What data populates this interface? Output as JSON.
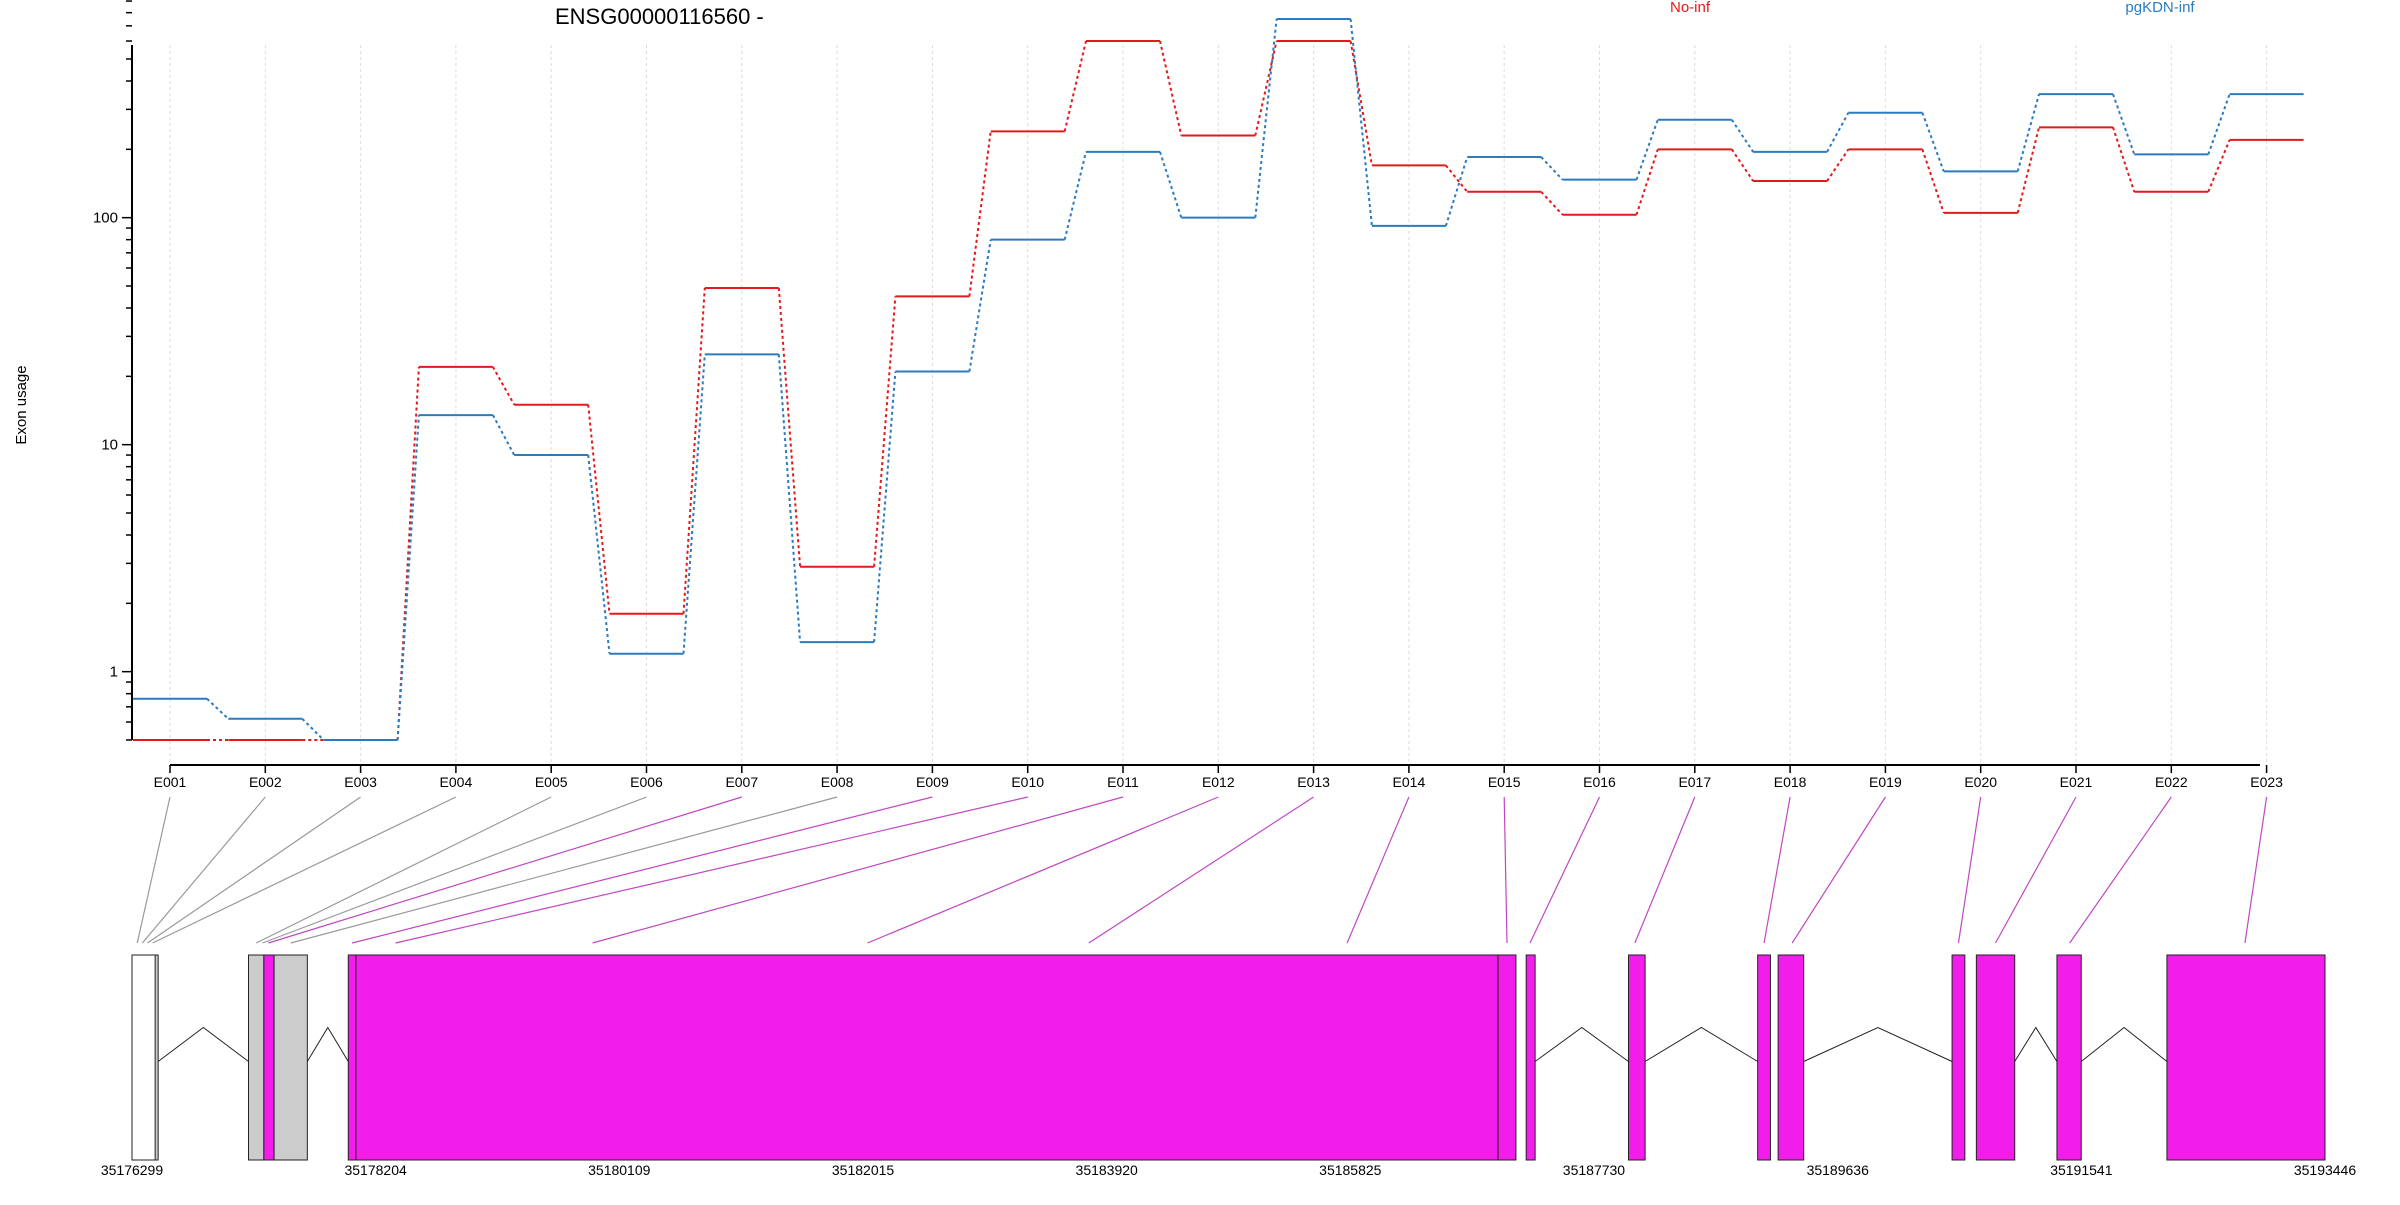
{
  "title": "ENSG00000116560 -",
  "legend": [
    {
      "name": "No-inf",
      "color": "#e31a1c"
    },
    {
      "name": "pgKDN-inf",
      "color": "#2b7bbf"
    }
  ],
  "ylabel": "Exon usage",
  "colors": {
    "no_inf": "#e31a1c",
    "pgkdn_inf": "#2b7bbf",
    "exon_used": "#f21deb",
    "exon_other": "#cccccc",
    "connector_used": "#c048c0",
    "connector_other": "#999999",
    "grid": "#dddddd"
  },
  "chart_data": {
    "type": "line",
    "title": "ENSG00000116560 -",
    "ylabel": "Exon usage",
    "yscale": "log",
    "ylim": [
      0.5,
      900
    ],
    "yticks": [
      1,
      10,
      100
    ],
    "ytick_labels": [
      "1",
      "10",
      "100"
    ],
    "grid": "vertical dotted",
    "legend_position": "top",
    "categories": [
      "E001",
      "E002",
      "E003",
      "E004",
      "E005",
      "E006",
      "E007",
      "E008",
      "E009",
      "E010",
      "E011",
      "E012",
      "E013",
      "E014",
      "E015",
      "E016",
      "E017",
      "E018",
      "E019",
      "E020",
      "E021",
      "E022",
      "E023"
    ],
    "series": [
      {
        "name": "No-inf",
        "color": "#e31a1c",
        "values": [
          0.5,
          0.5,
          0.5,
          22,
          15,
          1.8,
          49,
          2.9,
          45,
          240,
          600,
          230,
          600,
          170,
          130,
          103,
          200,
          145,
          200,
          105,
          250,
          130,
          220
        ]
      },
      {
        "name": "pgKDN-inf",
        "color": "#2b7bbf",
        "values": [
          0.76,
          0.62,
          0.5,
          13.5,
          9,
          1.2,
          25,
          1.35,
          21,
          80,
          195,
          100,
          750,
          92,
          185,
          147,
          270,
          195,
          290,
          160,
          350,
          190,
          350
        ]
      }
    ]
  },
  "gene_model": {
    "coord_labels": [
      "35176299",
      "35178204",
      "35180109",
      "35182015",
      "35183920",
      "35185825",
      "35187730",
      "35189636",
      "35191541",
      "35193446"
    ],
    "coord_ticks": [
      35176299,
      35178204,
      35180109,
      35182015,
      35183920,
      35185825,
      35187730,
      35189636,
      35191541,
      35193446
    ],
    "range": [
      35176299,
      35193446
    ],
    "exons": [
      {
        "start": 35176299,
        "end": 35176490,
        "kind": "blank"
      },
      {
        "start": 35176490,
        "end": 35176480,
        "kind": "other"
      },
      {
        "start": 35177210,
        "end": 35177330,
        "kind": "other"
      },
      {
        "start": 35177330,
        "end": 35177410,
        "kind": "used"
      },
      {
        "start": 35177410,
        "end": 35177670,
        "kind": "other"
      },
      {
        "start": 35177990,
        "end": 35178050,
        "kind": "used"
      },
      {
        "start": 35178050,
        "end": 35186980,
        "kind": "used"
      },
      {
        "start": 35186980,
        "end": 35187120,
        "kind": "used"
      },
      {
        "start": 35187200,
        "end": 35187270,
        "kind": "used"
      },
      {
        "start": 35188000,
        "end": 35188130,
        "kind": "used"
      },
      {
        "start": 35189010,
        "end": 35189110,
        "kind": "used"
      },
      {
        "start": 35189170,
        "end": 35189370,
        "kind": "used"
      },
      {
        "start": 35190530,
        "end": 35190630,
        "kind": "used"
      },
      {
        "start": 35190720,
        "end": 35191020,
        "kind": "used"
      },
      {
        "start": 35191350,
        "end": 35191540,
        "kind": "used"
      },
      {
        "start": 35192210,
        "end": 35193446,
        "kind": "used"
      }
    ],
    "exon_links": [
      {
        "exon": "E001",
        "pos": 35176340,
        "kind": "other"
      },
      {
        "exon": "E002",
        "pos": 35176380,
        "kind": "other"
      },
      {
        "exon": "E003",
        "pos": 35176420,
        "kind": "other"
      },
      {
        "exon": "E004",
        "pos": 35176460,
        "kind": "other"
      },
      {
        "exon": "E005",
        "pos": 35177270,
        "kind": "other"
      },
      {
        "exon": "E006",
        "pos": 35177320,
        "kind": "other"
      },
      {
        "exon": "E007",
        "pos": 35177365,
        "kind": "used"
      },
      {
        "exon": "E008",
        "pos": 35177540,
        "kind": "other"
      },
      {
        "exon": "E009",
        "pos": 35178020,
        "kind": "used"
      },
      {
        "exon": "E010",
        "pos": 35178360,
        "kind": "used"
      },
      {
        "exon": "E011",
        "pos": 35179900,
        "kind": "used"
      },
      {
        "exon": "E012",
        "pos": 35182050,
        "kind": "used"
      },
      {
        "exon": "E013",
        "pos": 35183780,
        "kind": "used"
      },
      {
        "exon": "E014",
        "pos": 35185800,
        "kind": "used"
      },
      {
        "exon": "E015",
        "pos": 35187050,
        "kind": "used"
      },
      {
        "exon": "E016",
        "pos": 35187230,
        "kind": "used"
      },
      {
        "exon": "E017",
        "pos": 35188050,
        "kind": "used"
      },
      {
        "exon": "E018",
        "pos": 35189060,
        "kind": "used"
      },
      {
        "exon": "E019",
        "pos": 35189280,
        "kind": "used"
      },
      {
        "exon": "E020",
        "pos": 35190580,
        "kind": "used"
      },
      {
        "exon": "E021",
        "pos": 35190870,
        "kind": "used"
      },
      {
        "exon": "E022",
        "pos": 35191450,
        "kind": "used"
      },
      {
        "exon": "E023",
        "pos": 35192820,
        "kind": "used"
      }
    ]
  }
}
